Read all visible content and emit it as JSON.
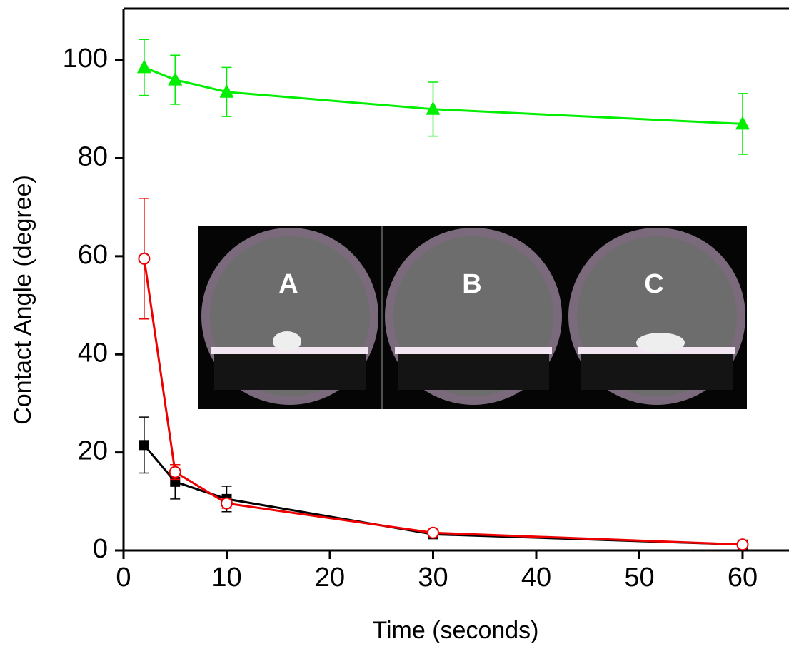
{
  "chart_data": {
    "type": "line",
    "xlabel": "Time (seconds)",
    "ylabel": "Contact Angle (degree)",
    "x": [
      2,
      5,
      10,
      30,
      60
    ],
    "series": [
      {
        "color": "#00ee00",
        "marker": "triangle",
        "values": [
          98.5,
          96,
          93.5,
          90,
          87
        ],
        "errors": [
          5.7,
          5,
          5,
          5.5,
          6.2
        ]
      },
      {
        "color": "#000000",
        "marker": "square",
        "values": [
          21.5,
          14,
          10.5,
          3.3,
          1.2
        ],
        "errors": [
          5.7,
          3.5,
          2.6,
          0.3,
          0.3
        ]
      },
      {
        "color": "#ee0000",
        "marker": "circle",
        "values": [
          59.5,
          16,
          9.6,
          3.6,
          1.2
        ],
        "errors": [
          12.3,
          1.5,
          1,
          0.5,
          0.5
        ]
      }
    ],
    "xlim": [
      0,
      64.5
    ],
    "ylim": [
      0,
      110.5
    ],
    "xticks": [
      0,
      10,
      20,
      30,
      40,
      50,
      60
    ],
    "yticks": [
      0,
      20,
      40,
      60,
      80,
      100
    ],
    "inset": {
      "labels": [
        "A",
        "B",
        "C"
      ]
    }
  }
}
